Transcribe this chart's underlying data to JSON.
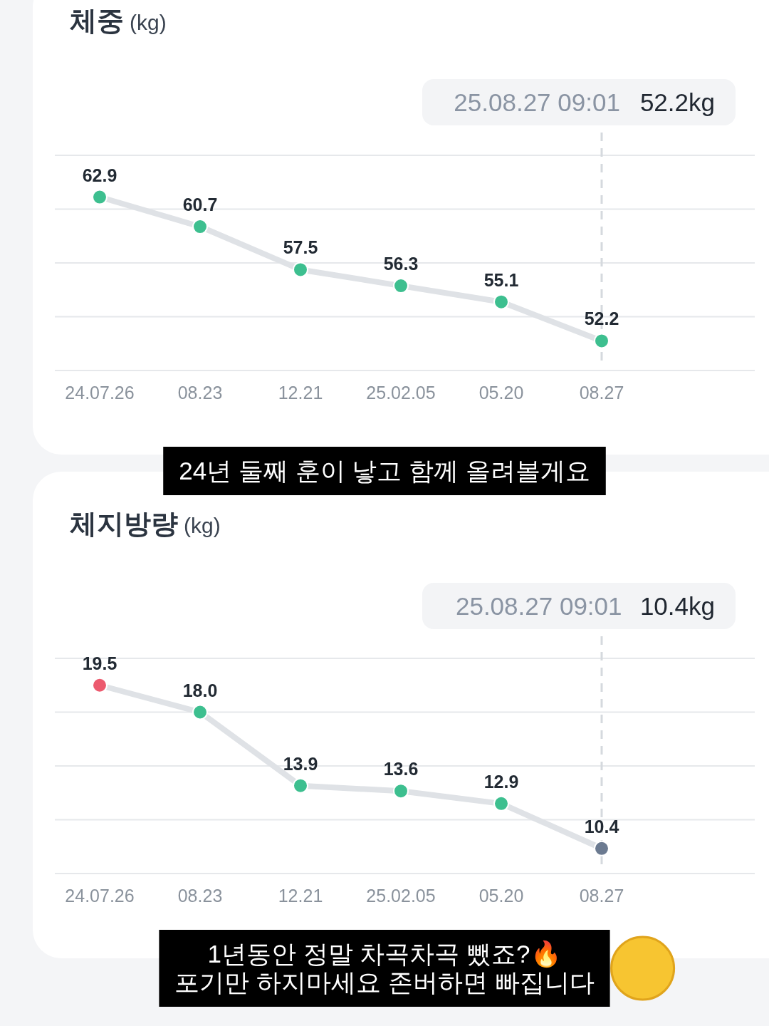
{
  "chart_data": [
    {
      "type": "line",
      "title": "체중",
      "ylabel": "(kg)",
      "categories": [
        "24.07.26",
        "08.23",
        "12.21",
        "25.02.05",
        "05.20",
        "08.27"
      ],
      "series": [
        {
          "color": "#dfe2e6",
          "colors": [
            "#3dbf8f",
            "#3dbf8f",
            "#3dbf8f",
            "#3dbf8f",
            "#3dbf8f",
            "#3dbf8f"
          ],
          "values": [
            62.9,
            60.7,
            57.5,
            56.3,
            55.1,
            52.2
          ],
          "value_labels": [
            "62.9",
            "60.7",
            "57.5",
            "56.3",
            "55.1",
            "52.2"
          ]
        }
      ],
      "ylim": [
        50,
        66
      ],
      "yticks": [
        {
          "value": 50,
          "label": null
        },
        {
          "value": 54,
          "label": null
        },
        {
          "value": 58,
          "label": null
        },
        {
          "value": 62,
          "label": null
        },
        {
          "value": 66,
          "label": null
        }
      ],
      "tick_labels": "x",
      "grid": "y",
      "marker": "circle",
      "ref_lines": [
        {
          "axis": "x",
          "value": "08.27",
          "color": "#d5d9de",
          "line_style": "dashed"
        }
      ],
      "annotations": [
        "25.08.27 09:01",
        "52.2kg",
        "24년 둘째 훈이 낳고 함께 올려볼게요"
      ]
    },
    {
      "type": "line",
      "title": "체지방량",
      "ylabel": "(kg)",
      "categories": [
        "24.07.26",
        "08.23",
        "12.21",
        "25.02.05",
        "05.20",
        "08.27"
      ],
      "series": [
        {
          "color": "#dfe2e6",
          "colors": [
            "#ec5a6e",
            "#3dbf8f",
            "#3dbf8f",
            "#3dbf8f",
            "#3dbf8f",
            "#6b7a90"
          ],
          "values": [
            19.5,
            18.0,
            13.9,
            13.6,
            12.9,
            10.4
          ],
          "value_labels": [
            "19.5",
            "18.0",
            "13.9",
            "13.6",
            "12.9",
            "10.4"
          ]
        }
      ],
      "ylim": [
        9,
        21
      ],
      "yticks": [
        {
          "value": 9,
          "label": null
        },
        {
          "value": 12,
          "label": null
        },
        {
          "value": 15,
          "label": null
        },
        {
          "value": 18,
          "label": null
        },
        {
          "value": 21,
          "label": null
        }
      ],
      "tick_labels": "x",
      "grid": "y",
      "marker": "circle",
      "ref_lines": [
        {
          "axis": "x",
          "value": "08.27",
          "color": "#d5d9de",
          "line_style": "dashed"
        }
      ],
      "annotations": [
        "25.08.27 09:01",
        "10.4kg",
        "1년동안 정말 차곡차곡 뺐죠?🔥\n포기만 하지마세요 존버하면 빠집니다"
      ]
    }
  ]
}
